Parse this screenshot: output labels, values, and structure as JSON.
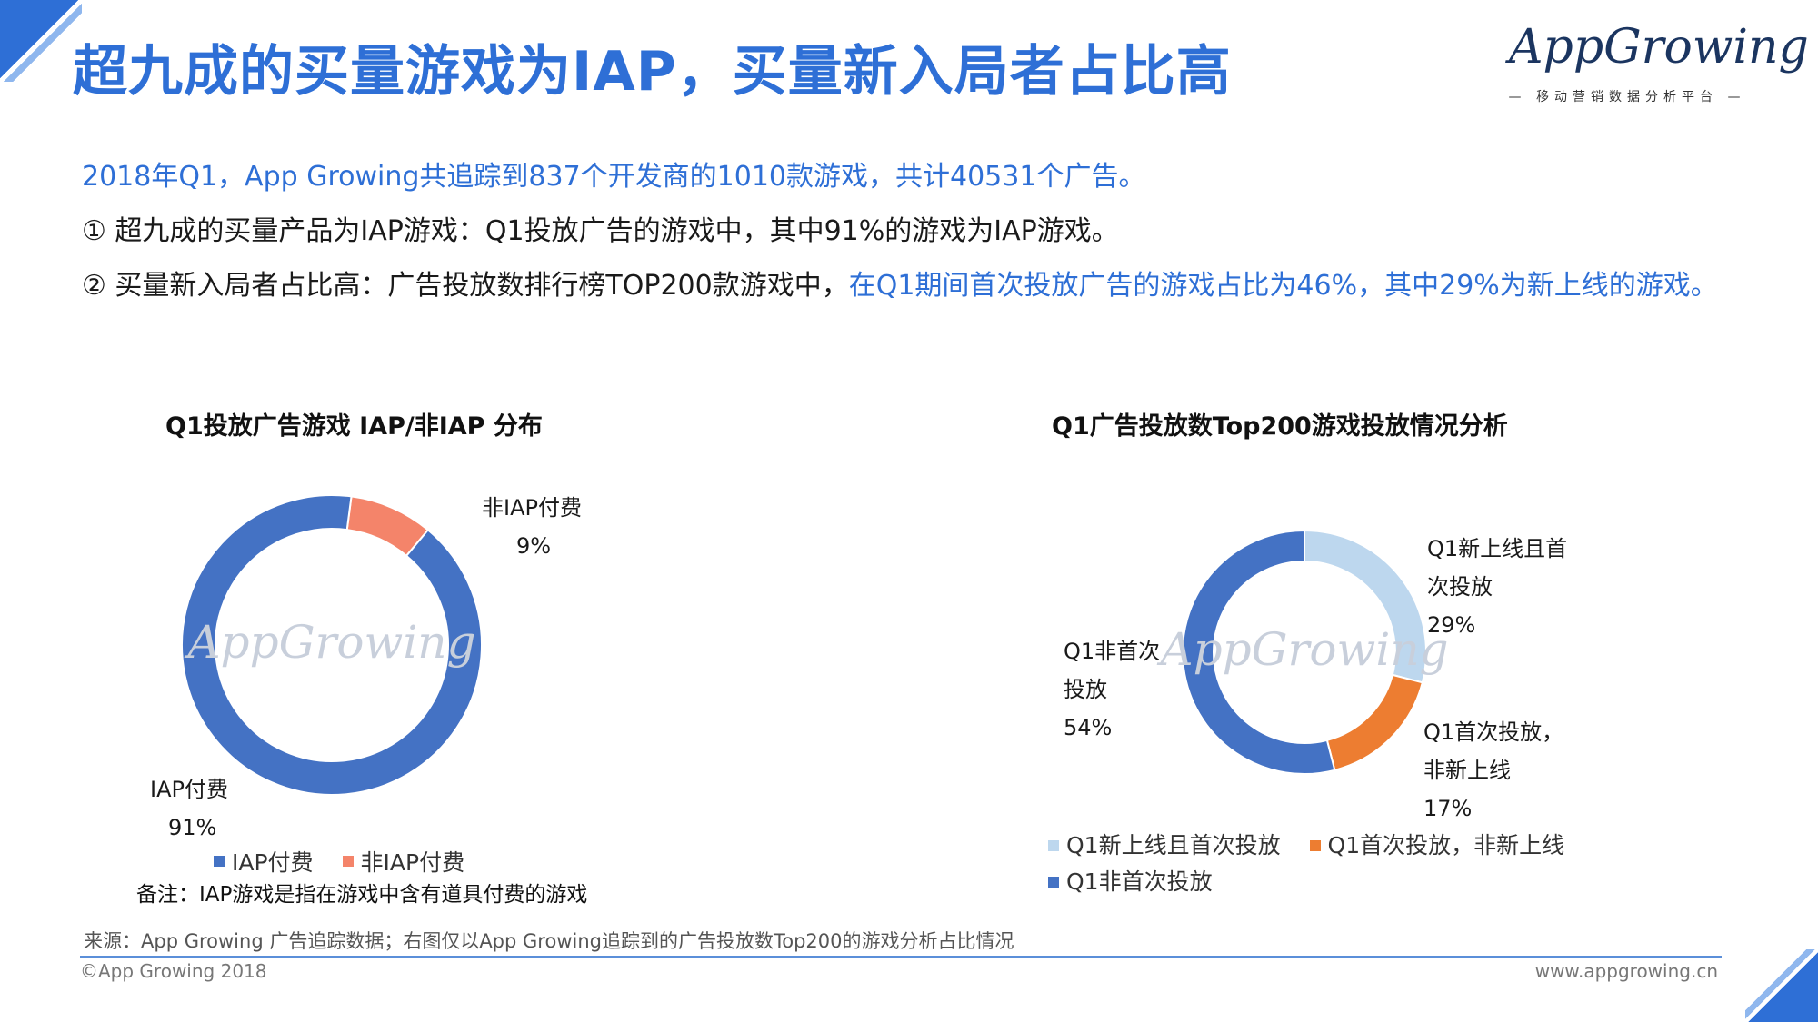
{
  "title": "超九成的买量游戏为IAP，买量新入局者占比高",
  "logo": {
    "name": "AppGrowing",
    "subtitle": "— 移动营销数据分析平台 —"
  },
  "body": {
    "line1": "2018年Q1，App Growing共追踪到837个开发商的1010款游戏，共计40531个广告。",
    "line2": "① 超九成的买量产品为IAP游戏：Q1投放广告的游戏中，其中91%的游戏为IAP游戏。",
    "line3_black": "② 买量新入局者占比高：广告投放数排行榜TOP200款游戏中，",
    "line3_blue": "在Q1期间首次投放广告的游戏占比为46%，其中29%为新上线的游戏。"
  },
  "chart_data": [
    {
      "type": "pie",
      "title": "Q1投放广告游戏 IAP/非IAP 分布",
      "categories": [
        "非IAP付费",
        "IAP付费"
      ],
      "values": [
        9,
        91
      ],
      "value_labels": [
        "9%",
        "91%"
      ],
      "colors": [
        "#f4846a",
        "#4472c4"
      ],
      "legend": [
        "IAP付费",
        "非IAP付费"
      ],
      "legend_colors": [
        "#4472c4",
        "#f4846a"
      ],
      "legend_position": "bottom",
      "watermark": "AppGrowing"
    },
    {
      "type": "pie",
      "title": "Q1广告投放数Top200游戏投放情况分析",
      "categories": [
        "Q1新上线且首次投放",
        "Q1首次投放，非新上线",
        "Q1非首次投放"
      ],
      "values": [
        29,
        17,
        54
      ],
      "value_labels": [
        "29%",
        "17%",
        "54%"
      ],
      "slice_labels": [
        [
          "Q1新上线且首",
          "次投放"
        ],
        [
          "Q1首次投放，",
          "非新上线"
        ],
        [
          "Q1非首次",
          "投放"
        ]
      ],
      "colors": [
        "#bdd7ee",
        "#ed7d31",
        "#4472c4"
      ],
      "legend": [
        "Q1新上线且首次投放",
        "Q1首次投放，非新上线",
        "Q1非首次投放"
      ],
      "legend_position": "bottom",
      "watermark": "AppGrowing"
    }
  ],
  "note": "备注：IAP游戏是指在游戏中含有道具付费的游戏",
  "source": "来源：App Growing 广告追踪数据；右图仅以App Growing追踪到的广告投放数Top200的游戏分析占比情况",
  "copyright": "©App Growing 2018",
  "website": "www.appgrowing.cn"
}
